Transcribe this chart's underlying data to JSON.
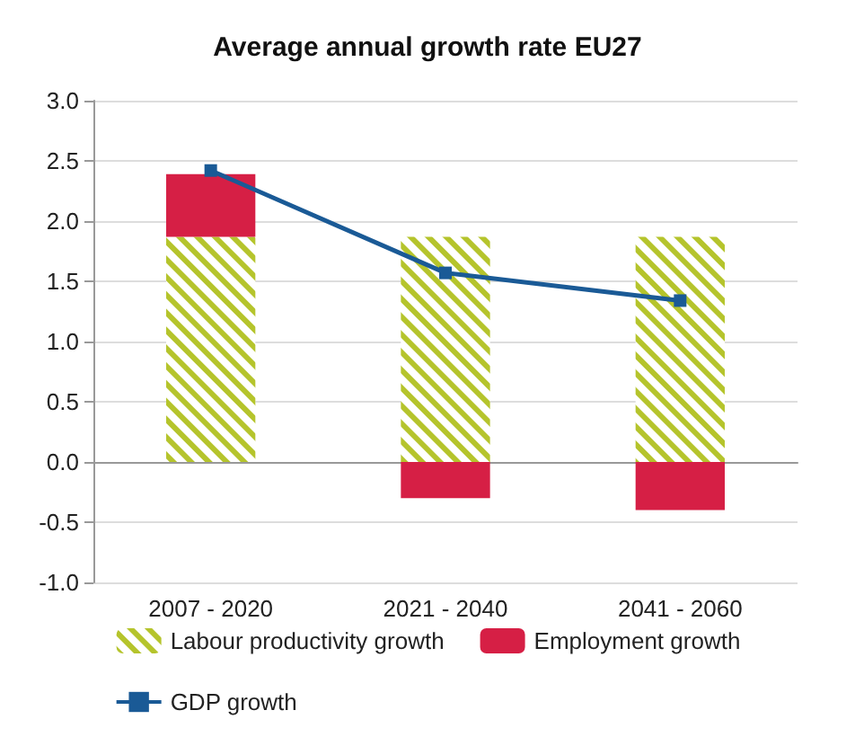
{
  "chart_data": {
    "type": "bar",
    "title": "Average annual growth rate EU27",
    "categories": [
      "2007 - 2020",
      "2021 - 2040",
      "2041 - 2060"
    ],
    "stacked": true,
    "series": [
      {
        "name": "Labour productivity growth",
        "color": "#b5c42c",
        "values": [
          1.87,
          1.87,
          1.87
        ]
      },
      {
        "name": "Employment growth",
        "color": "#d61f45",
        "values": [
          0.52,
          -0.3,
          -0.4
        ]
      },
      {
        "name": "GDP growth",
        "type": "line",
        "color": "#1a5a96",
        "values": [
          2.42,
          1.57,
          1.34
        ]
      }
    ],
    "ylim": [
      -1,
      3
    ],
    "yticks": [
      {
        "value": -1,
        "label": "-1.0"
      },
      -0.5,
      {
        "value": 0,
        "label": "0.0"
      },
      0.5,
      {
        "value": 1,
        "label": "1.0"
      },
      1.5,
      {
        "value": 2,
        "label": "2.0"
      },
      2.5,
      {
        "value": 3,
        "label": "3.0"
      }
    ],
    "grid": "y",
    "legend": "bottom",
    "marker": "square"
  }
}
